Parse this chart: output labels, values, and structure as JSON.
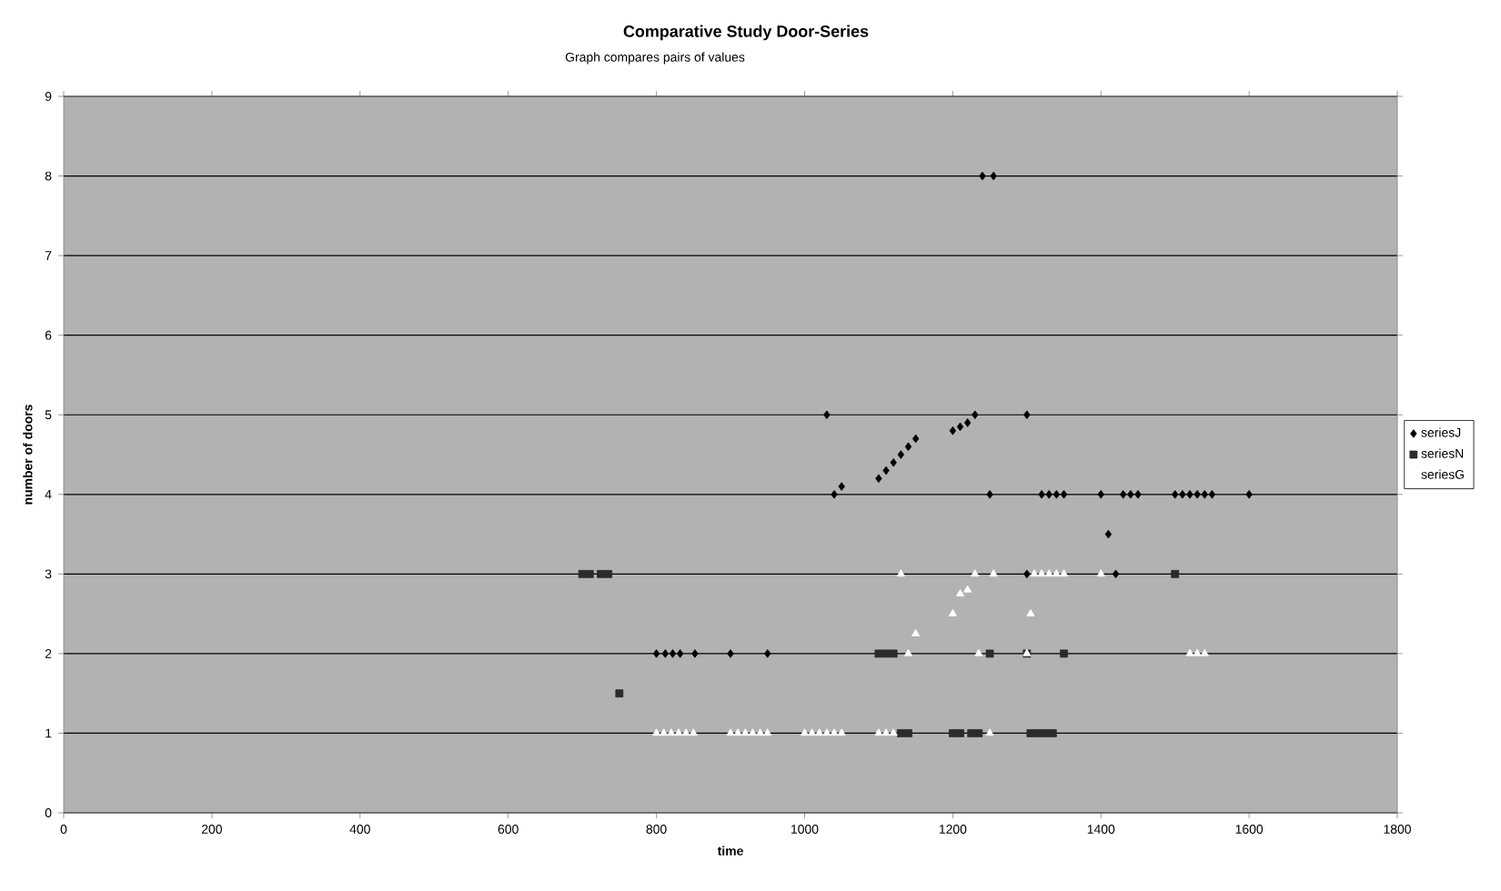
{
  "chart_data": {
    "type": "scatter",
    "title": "Comparative Study Door-Series",
    "subtitle": "Graph compares pairs of values",
    "xlabel": "time",
    "ylabel": "number of doors",
    "xlim": [
      0,
      1800
    ],
    "xticks": [
      0,
      200,
      400,
      600,
      800,
      1000,
      1200,
      1400,
      1600,
      1800
    ],
    "ylim": [
      0,
      9
    ],
    "yticks": [
      0,
      1,
      2,
      3,
      4,
      5,
      6,
      7,
      8,
      9
    ],
    "grid": "y",
    "legend": "right",
    "series": [
      {
        "name": "seriesJ",
        "color": "#000000",
        "marker": "diamond",
        "x": [
          800,
          812,
          822,
          832,
          852,
          900,
          950,
          1030,
          1040,
          1050,
          1100,
          1110,
          1120,
          1130,
          1140,
          1150,
          1200,
          1210,
          1220,
          1230,
          1240,
          1255,
          1250,
          1300,
          1300,
          1320,
          1330,
          1340,
          1350,
          1400,
          1430,
          1440,
          1450,
          1500,
          1510,
          1520,
          1530,
          1540,
          1550,
          1600,
          1410,
          1420
        ],
        "values": [
          2,
          2,
          2,
          2,
          2,
          2,
          2,
          5,
          4,
          4.1,
          4.2,
          4.3,
          4.4,
          4.5,
          4.6,
          4.7,
          4.8,
          4.85,
          4.9,
          5,
          8,
          8,
          4,
          5,
          3,
          4,
          4,
          4,
          4,
          4,
          4,
          4,
          4,
          4,
          4,
          4,
          4,
          4,
          4,
          4,
          3.5,
          3
        ]
      },
      {
        "name": "seriesN",
        "color": "#2b2b2b",
        "marker": "square",
        "x": [
          700,
          710,
          725,
          735,
          750,
          1100,
          1110,
          1120,
          1250,
          1300,
          1350,
          1130,
          1140,
          1200,
          1210,
          1225,
          1235,
          1305,
          1315,
          1325,
          1335,
          1500
        ],
        "values": [
          3,
          3,
          3,
          3,
          1.5,
          2,
          2,
          2,
          2,
          2,
          2,
          1,
          1,
          1,
          1,
          1,
          1,
          1,
          1,
          1,
          1,
          3
        ]
      },
      {
        "name": "seriesG",
        "color": "#ffffff",
        "marker": "triangle",
        "x": [
          800,
          810,
          820,
          830,
          840,
          850,
          900,
          910,
          920,
          930,
          940,
          950,
          1000,
          1010,
          1020,
          1030,
          1040,
          1050,
          1100,
          1110,
          1120,
          1250,
          1130,
          1230,
          1255,
          1310,
          1320,
          1330,
          1340,
          1350,
          1400,
          1140,
          1235,
          1300,
          1520,
          1530,
          1540,
          1150,
          1200,
          1210,
          1220,
          1305
        ],
        "values": [
          1,
          1,
          1,
          1,
          1,
          1,
          1,
          1,
          1,
          1,
          1,
          1,
          1,
          1,
          1,
          1,
          1,
          1,
          1,
          1,
          1,
          1,
          3,
          3,
          3,
          3,
          3,
          3,
          3,
          3,
          3,
          2,
          2,
          2,
          2,
          2,
          2,
          2.25,
          2.5,
          2.75,
          2.8,
          2.5
        ]
      }
    ]
  }
}
